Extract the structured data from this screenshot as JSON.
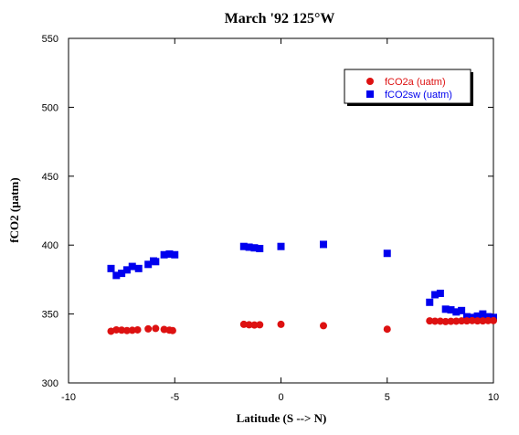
{
  "chart_data": {
    "type": "scatter",
    "title": "March '92 125°W",
    "xlabel": "Latitude (S --> N)",
    "ylabel": "fCO2 (µatm)",
    "xlim": [
      -10,
      10
    ],
    "ylim": [
      300,
      550
    ],
    "xticks": [
      -10,
      -5,
      0,
      5,
      10
    ],
    "yticks": [
      300,
      350,
      400,
      450,
      500,
      550
    ],
    "legend_position": "top-right",
    "grid": false,
    "series": [
      {
        "name": "fCO2a (uatm)",
        "marker": "circle",
        "color": "#dd1111",
        "points": [
          [
            -8.0,
            337.5
          ],
          [
            -7.75,
            338.5
          ],
          [
            -7.5,
            338.3
          ],
          [
            -7.25,
            338.0
          ],
          [
            -7.0,
            338.2
          ],
          [
            -6.75,
            338.5
          ],
          [
            -6.25,
            339.2
          ],
          [
            -5.9,
            339.5
          ],
          [
            -5.5,
            338.8
          ],
          [
            -5.25,
            338.3
          ],
          [
            -5.1,
            338.0
          ],
          [
            -1.75,
            342.5
          ],
          [
            -1.5,
            342.2
          ],
          [
            -1.25,
            342.0
          ],
          [
            -1.0,
            342.2
          ],
          [
            0.0,
            342.5
          ],
          [
            2.0,
            341.5
          ],
          [
            5.0,
            339.0
          ],
          [
            7.0,
            345.0
          ],
          [
            7.25,
            344.8
          ],
          [
            7.5,
            344.8
          ],
          [
            7.75,
            344.5
          ],
          [
            8.0,
            344.7
          ],
          [
            8.25,
            344.8
          ],
          [
            8.5,
            345.0
          ],
          [
            8.75,
            345.0
          ],
          [
            9.0,
            345.2
          ],
          [
            9.25,
            345.0
          ],
          [
            9.5,
            345.0
          ],
          [
            9.75,
            345.2
          ],
          [
            10.0,
            345.2
          ]
        ]
      },
      {
        "name": "fCO2sw (uatm)",
        "marker": "square",
        "color": "#0000ee",
        "points": [
          [
            -8.0,
            383.0
          ],
          [
            -7.75,
            378.0
          ],
          [
            -7.5,
            379.5
          ],
          [
            -7.25,
            382.0
          ],
          [
            -7.0,
            384.5
          ],
          [
            -6.7,
            383.0
          ],
          [
            -6.25,
            386.0
          ],
          [
            -6.0,
            388.5
          ],
          [
            -5.9,
            388.0
          ],
          [
            -5.5,
            393.0
          ],
          [
            -5.25,
            393.5
          ],
          [
            -5.0,
            393.0
          ],
          [
            -1.75,
            399.0
          ],
          [
            -1.5,
            398.5
          ],
          [
            -1.25,
            398.0
          ],
          [
            -1.0,
            397.5
          ],
          [
            0.0,
            399.0
          ],
          [
            2.0,
            400.5
          ],
          [
            5.0,
            394.0
          ],
          [
            7.0,
            358.5
          ],
          [
            7.25,
            364.0
          ],
          [
            7.5,
            365.0
          ],
          [
            7.75,
            353.5
          ],
          [
            8.0,
            353.0
          ],
          [
            8.25,
            351.5
          ],
          [
            8.5,
            352.5
          ],
          [
            8.75,
            348.0
          ],
          [
            9.0,
            347.5
          ],
          [
            9.25,
            348.5
          ],
          [
            9.5,
            350.0
          ],
          [
            9.75,
            348.0
          ],
          [
            10.0,
            347.5
          ]
        ]
      }
    ]
  }
}
